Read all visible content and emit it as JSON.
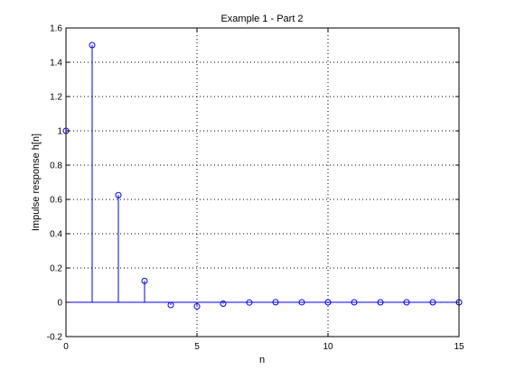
{
  "chart_data": {
    "type": "stem",
    "title": "Example 1 - Part 2",
    "xlabel": "n",
    "ylabel": "Impulse response h[n]",
    "xlim": [
      0,
      15
    ],
    "ylim": [
      -0.2,
      1.6
    ],
    "x_ticks": [
      "0",
      "5",
      "10",
      "15"
    ],
    "y_ticks": [
      "-0.2",
      "0",
      "0.2",
      "0.4",
      "0.6",
      "0.8",
      "1",
      "1.2",
      "1.4",
      "1.6"
    ],
    "grid": true,
    "series": [
      {
        "color": "#0000ff",
        "marker": "circle",
        "x": [
          0,
          1,
          2,
          3,
          4,
          5,
          6,
          7,
          8,
          9,
          10,
          11,
          12,
          13,
          14,
          15
        ],
        "y": [
          1.0,
          1.5,
          0.625,
          0.125,
          -0.0156,
          -0.0234,
          -0.0078,
          -0.001,
          0.0005,
          0.0003,
          0.0001,
          0.0,
          0.0,
          0.0,
          0.0,
          0.0
        ]
      }
    ]
  }
}
